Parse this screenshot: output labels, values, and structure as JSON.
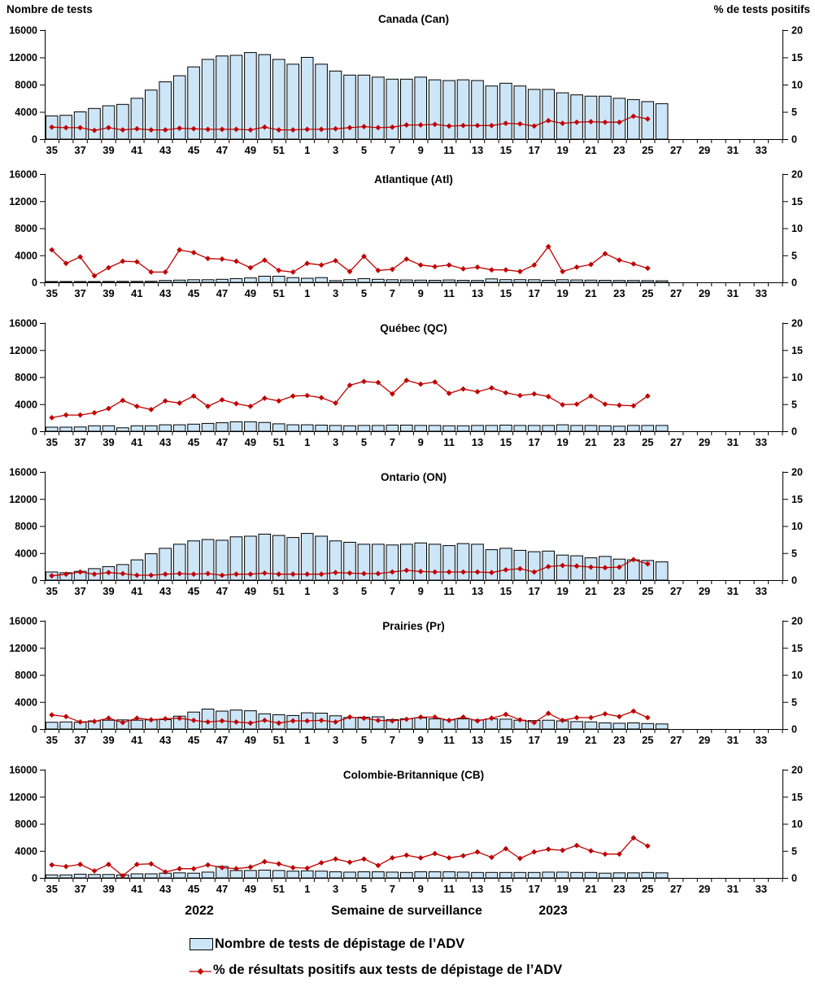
{
  "header": {
    "left_axis_title": "Nombre de tests",
    "right_axis_title": "% de tests positifs"
  },
  "footer": {
    "year_left": "2022",
    "x_axis_title": "Semaine de surveillance",
    "year_right": "2023"
  },
  "legend": {
    "items": [
      {
        "label": "Nombre de tests de dépistage de l’ADV",
        "swatch": "bar",
        "color": "#CDE6F7"
      },
      {
        "label": "% de résultats positifs aux tests de dépistage de l’ADV",
        "swatch": "line-diamond",
        "color": "#C00000"
      }
    ]
  },
  "colors": {
    "bar_fill": "#CDE6F7",
    "bar_stroke": "#000000",
    "line": "#C00000",
    "axis": "#000000"
  },
  "chart_data": {
    "type": "combo",
    "description": "Weekly ADV tests (bars, left axis) and % positive (line, right axis), surveillance weeks 35/2022 - 34/2023",
    "categories": [
      35,
      36,
      37,
      38,
      39,
      40,
      41,
      42,
      43,
      44,
      45,
      46,
      47,
      48,
      49,
      50,
      51,
      52,
      1,
      2,
      3,
      4,
      5,
      6,
      7,
      8,
      9,
      10,
      11,
      12,
      13,
      14,
      15,
      16,
      17,
      18,
      19,
      20,
      21,
      22,
      23,
      24,
      25,
      26,
      27,
      28,
      29,
      30,
      31,
      32,
      33,
      34
    ],
    "labeled_weeks": [
      35,
      37,
      39,
      41,
      43,
      45,
      47,
      49,
      51,
      1,
      3,
      5,
      7,
      9,
      11,
      13,
      15,
      17,
      19,
      21,
      23,
      25,
      27,
      29,
      31,
      33
    ],
    "left_axis": {
      "ticks": [
        0,
        4000,
        8000,
        12000,
        16000
      ],
      "max": 16000
    },
    "right_axis": {
      "ticks": [
        0,
        5,
        10,
        15,
        20
      ],
      "max": 20
    },
    "series_names": [
      "Nombre de tests de dépistage de l’ADV",
      "% de résultats positifs aux tests de dépistage de l’ADV"
    ],
    "panels": [
      {
        "title": "Canada (Can)",
        "bars": [
          3400,
          3500,
          4000,
          4500,
          4900,
          5100,
          6000,
          7200,
          8400,
          9300,
          10600,
          11700,
          12200,
          12300,
          12700,
          12400,
          11700,
          11000,
          12000,
          11000,
          10000,
          9400,
          9400,
          9100,
          8800,
          8800,
          9100,
          8700,
          8600,
          8700,
          8600,
          7800,
          8200,
          7800,
          7300,
          7300,
          6800,
          6500,
          6300,
          6300,
          6000,
          5800,
          5500,
          5200
        ],
        "line": [
          2.2,
          2.1,
          2.1,
          1.6,
          2.1,
          1.7,
          1.9,
          1.7,
          1.7,
          2.0,
          1.9,
          1.8,
          1.8,
          1.8,
          1.7,
          2.2,
          1.7,
          1.7,
          1.8,
          1.8,
          1.9,
          2.1,
          2.3,
          2.1,
          2.2,
          2.6,
          2.6,
          2.7,
          2.4,
          2.5,
          2.5,
          2.5,
          2.9,
          2.8,
          2.4,
          3.4,
          2.9,
          3.1,
          3.2,
          3.1,
          3.1,
          4.2,
          3.7,
          null
        ]
      },
      {
        "title": "Atlantique (Atl)",
        "bars": [
          120,
          120,
          120,
          120,
          130,
          140,
          150,
          160,
          280,
          330,
          380,
          380,
          450,
          550,
          650,
          900,
          900,
          700,
          600,
          700,
          250,
          400,
          550,
          450,
          380,
          350,
          320,
          300,
          350,
          300,
          280,
          500,
          400,
          400,
          380,
          300,
          380,
          350,
          330,
          300,
          280,
          280,
          250,
          230
        ],
        "line": [
          6.0,
          3.5,
          4.7,
          1.2,
          2.7,
          3.9,
          3.8,
          1.9,
          1.9,
          6.0,
          5.5,
          4.4,
          4.3,
          3.9,
          2.7,
          4.1,
          2.2,
          1.9,
          3.5,
          3.2,
          4.0,
          2.0,
          4.8,
          2.2,
          2.4,
          4.3,
          3.2,
          2.9,
          3.2,
          2.5,
          2.8,
          2.3,
          2.3,
          2.0,
          3.2,
          6.6,
          2.0,
          2.8,
          3.3,
          5.3,
          4.1,
          3.4,
          2.6,
          null
        ]
      },
      {
        "title": "Québec (QC)",
        "bars": [
          600,
          600,
          620,
          800,
          800,
          500,
          800,
          800,
          950,
          950,
          1050,
          1150,
          1250,
          1400,
          1400,
          1300,
          1100,
          950,
          950,
          900,
          850,
          800,
          850,
          850,
          900,
          900,
          850,
          850,
          800,
          800,
          850,
          850,
          900,
          850,
          850,
          850,
          950,
          850,
          850,
          800,
          750,
          850,
          850,
          850
        ],
        "line": [
          2.5,
          3.0,
          3.0,
          3.4,
          4.2,
          5.7,
          4.6,
          4.0,
          5.6,
          5.2,
          6.5,
          4.6,
          5.8,
          5.1,
          4.6,
          6.1,
          5.6,
          6.5,
          6.6,
          6.2,
          5.2,
          8.5,
          9.2,
          9.0,
          6.9,
          9.4,
          8.7,
          9.1,
          7.0,
          7.8,
          7.3,
          8.0,
          7.1,
          6.6,
          6.9,
          6.4,
          4.9,
          5.0,
          6.5,
          5.0,
          4.8,
          4.7,
          6.5,
          null
        ]
      },
      {
        "title": "Ontario (ON)",
        "bars": [
          1200,
          1100,
          1300,
          1700,
          2000,
          2300,
          3000,
          3900,
          4700,
          5300,
          5800,
          6000,
          5900,
          6400,
          6500,
          6800,
          6600,
          6300,
          6900,
          6500,
          5800,
          5600,
          5300,
          5300,
          5200,
          5300,
          5500,
          5300,
          5100,
          5400,
          5300,
          4500,
          4700,
          4400,
          4200,
          4300,
          3700,
          3600,
          3300,
          3500,
          3100,
          3000,
          2900,
          2700
        ],
        "line": [
          0.8,
          1.1,
          1.5,
          1.1,
          1.4,
          1.2,
          0.9,
          0.9,
          1.1,
          1.2,
          1.1,
          1.2,
          0.9,
          1.1,
          1.1,
          1.3,
          1.1,
          1.1,
          1.1,
          1.1,
          1.4,
          1.3,
          1.2,
          1.2,
          1.5,
          1.8,
          1.6,
          1.5,
          1.5,
          1.5,
          1.5,
          1.4,
          1.9,
          2.1,
          1.5,
          2.5,
          2.7,
          2.6,
          2.4,
          2.3,
          2.4,
          3.8,
          3.0,
          null
        ]
      },
      {
        "title": "Prairies (Pr)",
        "bars": [
          1000,
          1050,
          1000,
          1200,
          1300,
          1350,
          1300,
          1350,
          1400,
          1900,
          2500,
          2950,
          2650,
          2800,
          2700,
          2250,
          2100,
          2000,
          2400,
          2350,
          1950,
          1700,
          1750,
          1800,
          1400,
          1500,
          1650,
          1500,
          1350,
          1500,
          1350,
          1500,
          1450,
          1300,
          1250,
          1300,
          1200,
          1100,
          1050,
          900,
          850,
          900,
          800,
          750
        ],
        "line": [
          2.6,
          2.3,
          1.3,
          1.4,
          2.0,
          1.2,
          2.0,
          1.7,
          1.9,
          2.0,
          1.6,
          1.3,
          1.5,
          1.3,
          1.1,
          1.6,
          1.1,
          1.5,
          1.5,
          1.6,
          1.3,
          2.2,
          2.0,
          1.6,
          1.5,
          1.8,
          2.2,
          2.2,
          1.6,
          2.2,
          1.5,
          2.0,
          2.7,
          1.7,
          1.2,
          2.9,
          1.6,
          2.1,
          2.1,
          2.8,
          2.3,
          3.3,
          2.1,
          null
        ]
      },
      {
        "title": "Colombie-Britannique (CB)",
        "bars": [
          450,
          450,
          550,
          500,
          500,
          450,
          600,
          600,
          700,
          750,
          700,
          850,
          1700,
          1100,
          1100,
          1150,
          1100,
          1000,
          1050,
          1000,
          900,
          850,
          900,
          900,
          850,
          800,
          900,
          900,
          900,
          850,
          800,
          800,
          800,
          800,
          800,
          850,
          850,
          800,
          800,
          700,
          750,
          750,
          800,
          750
        ],
        "line": [
          2.4,
          2.1,
          2.5,
          1.3,
          2.5,
          0.4,
          2.5,
          2.6,
          1.1,
          1.7,
          1.7,
          2.4,
          1.9,
          1.7,
          2.0,
          3.0,
          2.6,
          1.9,
          1.8,
          2.8,
          3.5,
          2.9,
          3.5,
          2.3,
          3.7,
          4.2,
          3.7,
          4.5,
          3.7,
          4.1,
          4.8,
          3.8,
          5.4,
          3.6,
          4.8,
          5.3,
          5.1,
          6.0,
          5.0,
          4.4,
          4.4,
          7.4,
          5.9,
          null
        ]
      }
    ]
  }
}
